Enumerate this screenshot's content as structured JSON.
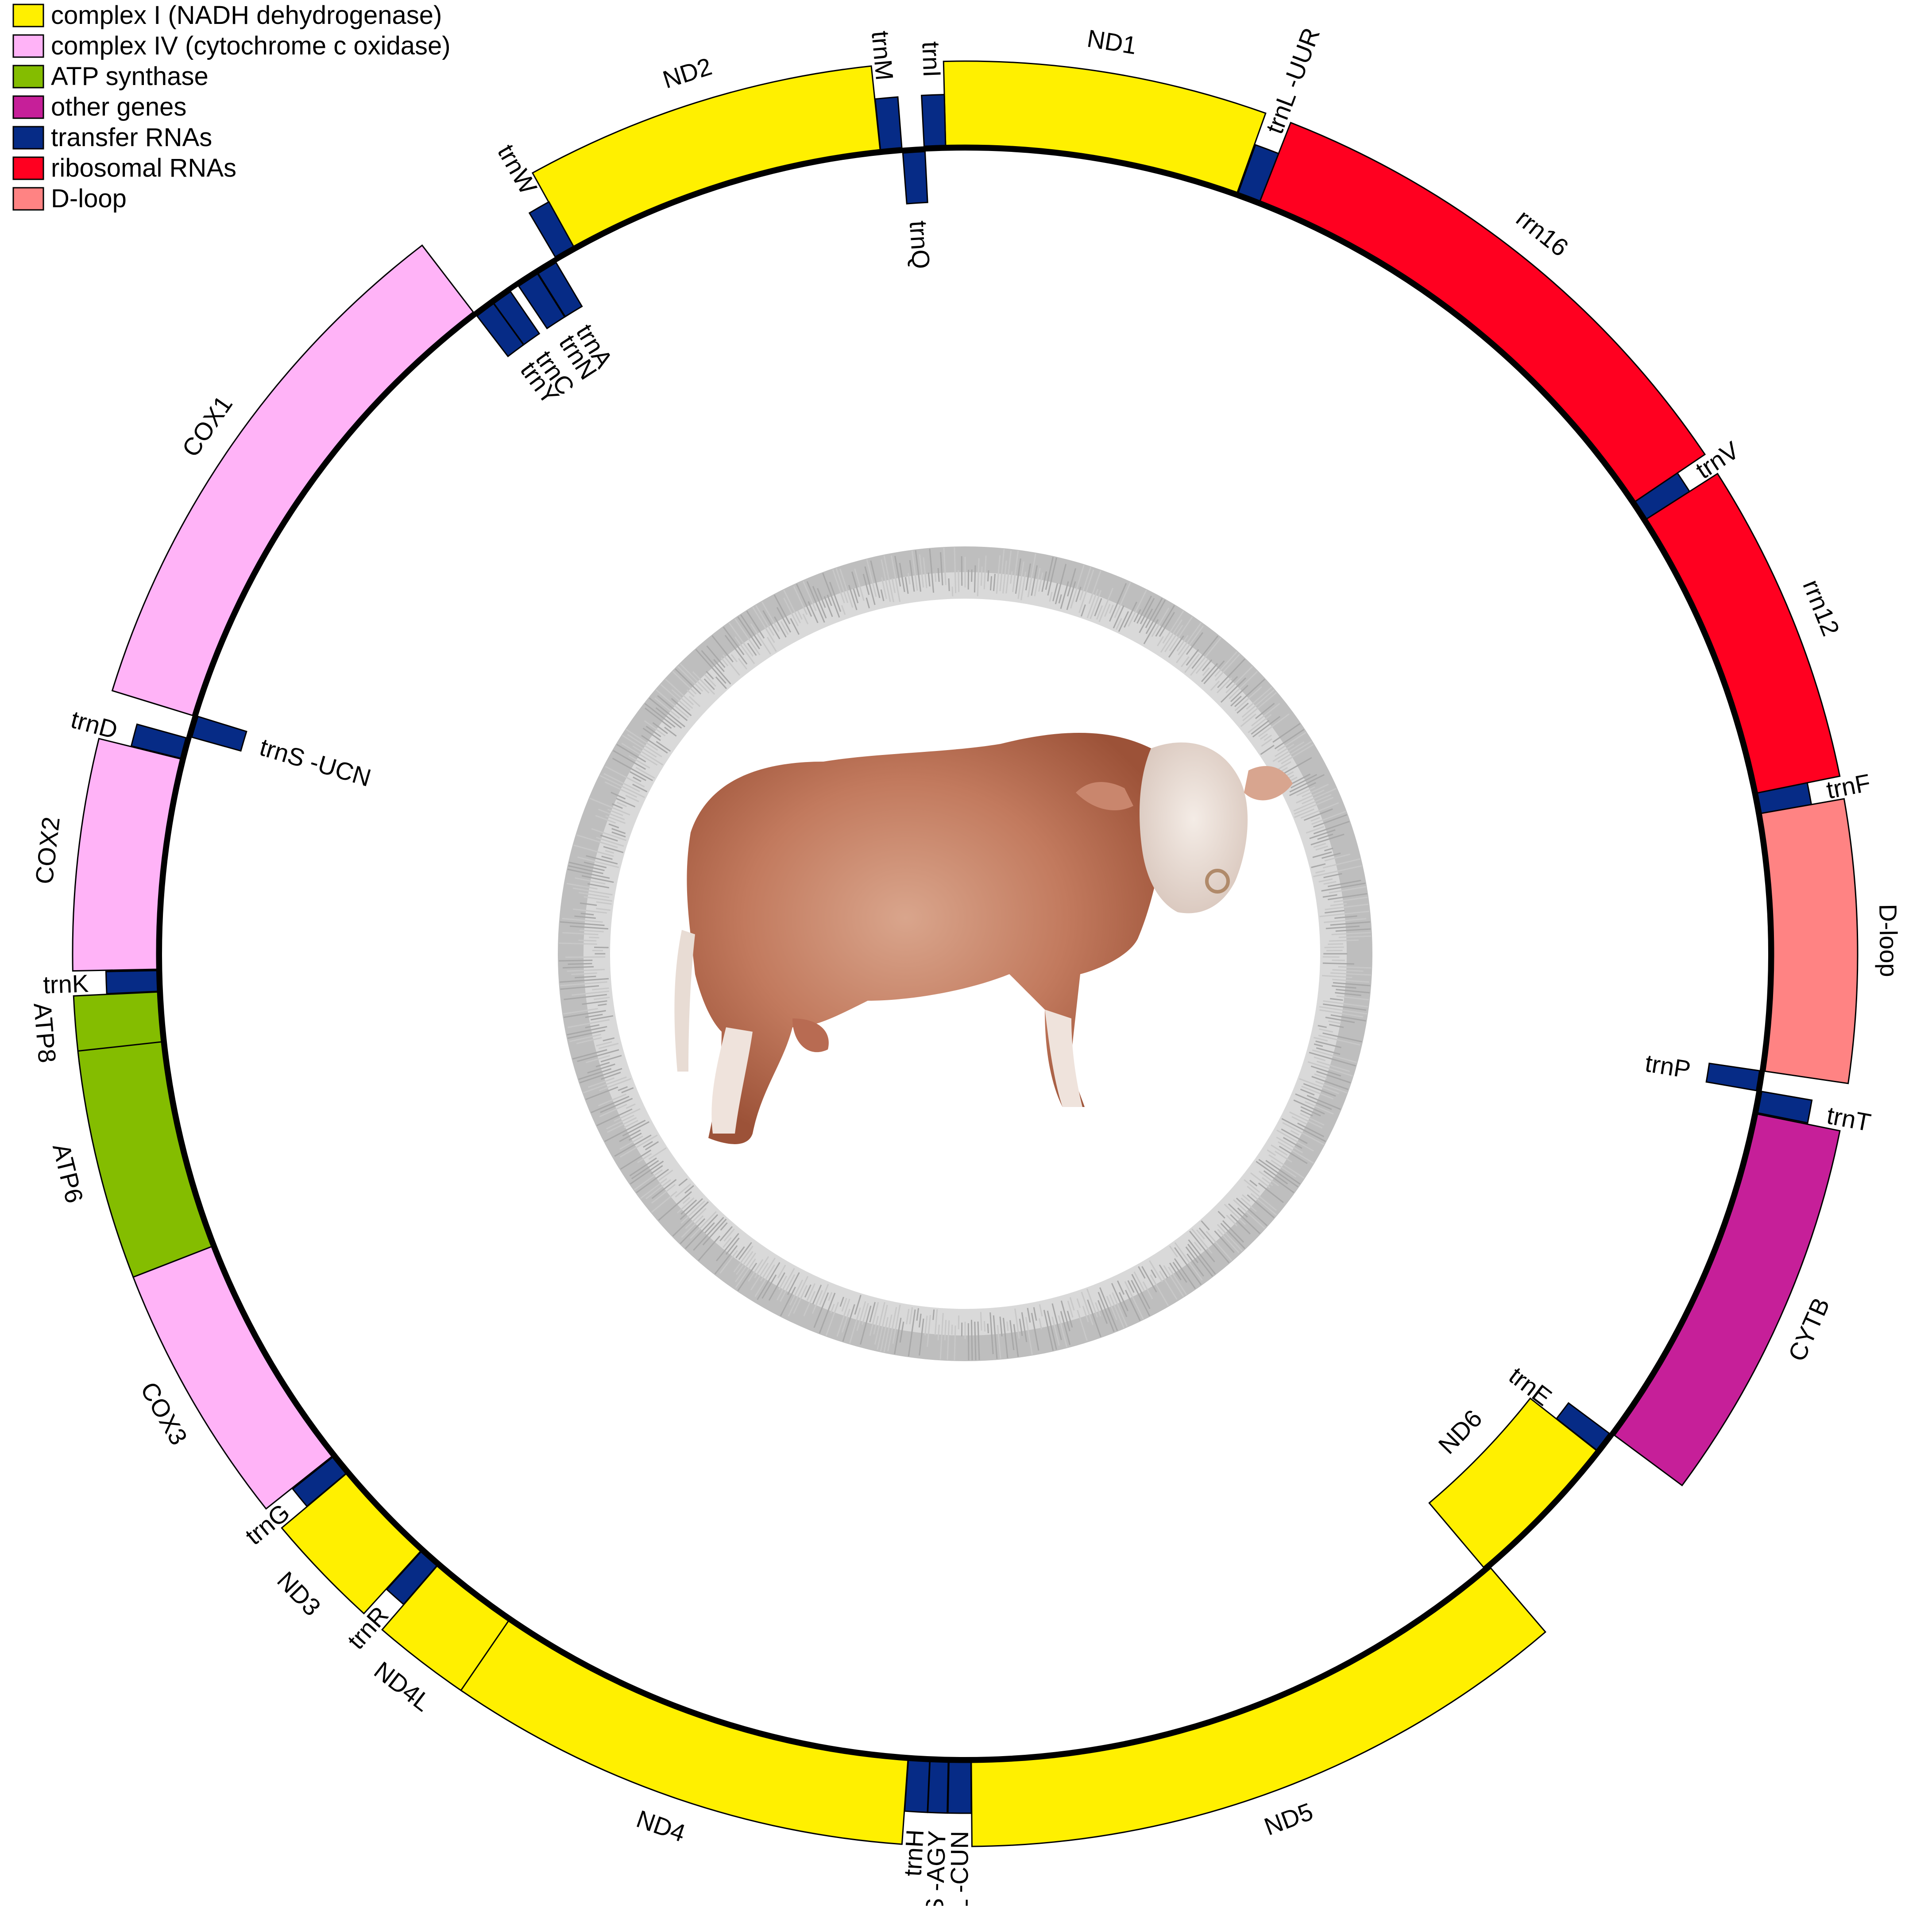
{
  "legend": [
    {
      "label": "complex I (NADH dehydrogenase)",
      "color": "#fff000"
    },
    {
      "label": "complex IV (cytochrome c oxidase)",
      "color": "#ffb3f7"
    },
    {
      "label": "ATP synthase",
      "color": "#84bd00"
    },
    {
      "label": "other genes",
      "color": "#c61f99"
    },
    {
      "label": "transfer RNAs",
      "color": "#062b86"
    },
    {
      "label": "ribosomal RNAs",
      "color": "#ff0020"
    },
    {
      "label": "D-loop",
      "color": "#ff8383"
    }
  ],
  "genes": [
    {
      "name": "trnF",
      "start": 0,
      "end": 67,
      "strand": "outer",
      "type": "trna"
    },
    {
      "name": "rrn12",
      "start": 67,
      "end": 1023,
      "strand": "outer",
      "type": "rrna"
    },
    {
      "name": "trnV",
      "start": 1023,
      "end": 1090,
      "strand": "outer",
      "type": "trna"
    },
    {
      "name": "rrn16",
      "start": 1090,
      "end": 2660,
      "strand": "outer",
      "type": "rrna"
    },
    {
      "name": "trnL -UUR",
      "start": 2660,
      "end": 2735,
      "strand": "outer",
      "type": "trna"
    },
    {
      "name": "ND1",
      "start": 2738,
      "end": 3694,
      "strand": "outer",
      "type": "complex1"
    },
    {
      "name": "trnI",
      "start": 3694,
      "end": 3763,
      "strand": "outer",
      "type": "trna"
    },
    {
      "name": "trnQ",
      "start": 3761,
      "end": 3833,
      "strand": "inner",
      "type": "trna"
    },
    {
      "name": "trnM",
      "start": 3835,
      "end": 3904,
      "strand": "outer",
      "type": "trna"
    },
    {
      "name": "ND2",
      "start": 3905,
      "end": 4947,
      "strand": "outer",
      "type": "complex1"
    },
    {
      "name": "trnW",
      "start": 4946,
      "end": 5014,
      "strand": "outer",
      "type": "trna"
    },
    {
      "name": "trnA",
      "start": 5021,
      "end": 5089,
      "strand": "inner",
      "type": "trna"
    },
    {
      "name": "trnN",
      "start": 5091,
      "end": 5164,
      "strand": "inner",
      "type": "trna"
    },
    {
      "name": "trnC",
      "start": 5196,
      "end": 5262,
      "strand": "inner",
      "type": "trna"
    },
    {
      "name": "trnY",
      "start": 5263,
      "end": 5330,
      "strand": "inner",
      "type": "trna"
    },
    {
      "name": "COX1",
      "start": 5332,
      "end": 6938,
      "strand": "outer",
      "type": "complex4"
    },
    {
      "name": "trnS -UCN",
      "start": 6936,
      "end": 7006,
      "strand": "inner",
      "type": "trna"
    },
    {
      "name": "trnD",
      "start": 7013,
      "end": 7081,
      "strand": "outer",
      "type": "trna"
    },
    {
      "name": "COX2",
      "start": 7083,
      "end": 7766,
      "strand": "outer",
      "type": "complex4"
    },
    {
      "name": "trnK",
      "start": 7770,
      "end": 7837,
      "strand": "outer",
      "type": "trna"
    },
    {
      "name": "ATP8",
      "start": 7839,
      "end": 8039,
      "strand": "outer",
      "type": "atp"
    },
    {
      "name": "ATP6",
      "start": 8000,
      "end": 8680,
      "strand": "outer",
      "type": "atp"
    },
    {
      "name": "COX3",
      "start": 8680,
      "end": 9461,
      "strand": "outer",
      "type": "complex4"
    },
    {
      "name": "trnG",
      "start": 9464,
      "end": 9532,
      "strand": "outer",
      "type": "trna"
    },
    {
      "name": "ND3",
      "start": 9533,
      "end": 9879,
      "strand": "outer",
      "type": "complex1"
    },
    {
      "name": "trnR",
      "start": 9881,
      "end": 9949,
      "strand": "outer",
      "type": "trna"
    },
    {
      "name": "ND4L",
      "start": 9950,
      "end": 10246,
      "strand": "outer",
      "type": "complex1"
    },
    {
      "name": "ND4",
      "start": 10240,
      "end": 11617,
      "strand": "outer",
      "type": "complex1"
    },
    {
      "name": "trnH",
      "start": 11618,
      "end": 11687,
      "strand": "outer",
      "type": "trna"
    },
    {
      "name": "trnS -AGY",
      "start": 11688,
      "end": 11747,
      "strand": "outer",
      "type": "trna"
    },
    {
      "name": "trnL -CUN",
      "start": 11749,
      "end": 11820,
      "strand": "outer",
      "type": "trna"
    },
    {
      "name": "ND5",
      "start": 11821,
      "end": 13642,
      "strand": "outer",
      "type": "complex1"
    },
    {
      "name": "ND6",
      "start": 13626,
      "end": 14153,
      "strand": "inner",
      "type": "complex1"
    },
    {
      "name": "trnE",
      "start": 14154,
      "end": 14222,
      "strand": "inner",
      "type": "trna"
    },
    {
      "name": "CYTB",
      "start": 14227,
      "end": 15367,
      "strand": "outer",
      "type": "other"
    },
    {
      "name": "trnT",
      "start": 15371,
      "end": 15441,
      "strand": "outer",
      "type": "trna"
    },
    {
      "name": "trnP",
      "start": 15441,
      "end": 15506,
      "strand": "inner",
      "type": "trna"
    },
    {
      "name": "D-loop",
      "start": 15507,
      "end": 16340,
      "strand": "outer",
      "type": "dloop"
    }
  ]
}
